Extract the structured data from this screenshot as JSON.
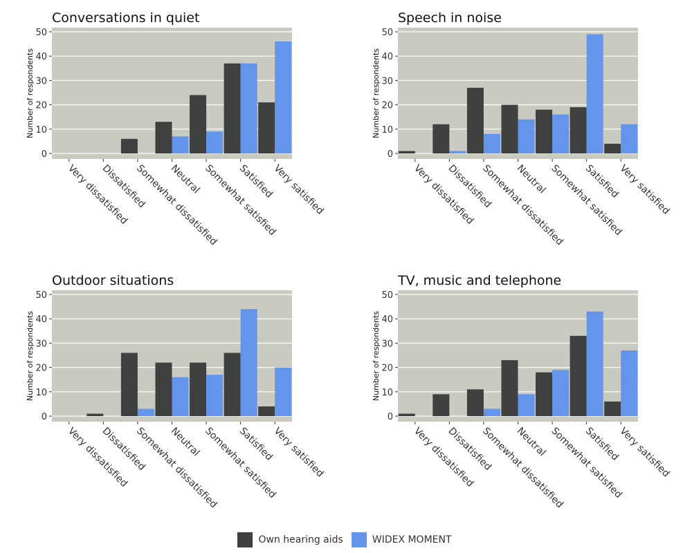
{
  "colors": {
    "own": "#3f4140",
    "widex": "#6495ed",
    "panel_bg": "#c9cbc1",
    "grid": "#ffffff",
    "text": "#333333"
  },
  "chart_data": [
    {
      "type": "bar",
      "title": "Conversations in quiet",
      "ylabel": "Number of respondents",
      "ylim": [
        0,
        50
      ],
      "yticks": [
        0,
        10,
        20,
        30,
        40,
        50
      ],
      "grid": true,
      "categories": [
        "Very dissatisfied",
        "Dissatisfied",
        "Somewhat dissatisfied",
        "Neutral",
        "Somewhat satisfied",
        "Satisfied",
        "Very satisfied"
      ],
      "series": [
        {
          "name": "Own hearing aids",
          "values": [
            0,
            0,
            6,
            13,
            24,
            37,
            21
          ]
        },
        {
          "name": "WIDEX MOMENT",
          "values": [
            0,
            0,
            0,
            7,
            9,
            37,
            46
          ]
        }
      ]
    },
    {
      "type": "bar",
      "title": "Speech in noise",
      "ylabel": "Number of respondents",
      "ylim": [
        0,
        50
      ],
      "yticks": [
        0,
        10,
        20,
        30,
        40,
        50
      ],
      "grid": true,
      "categories": [
        "Very dissatisfied",
        "Dissatisfied",
        "Somewhat dissatisfied",
        "Neutral",
        "Somewhat satisfied",
        "Satisfied",
        "Very satisfied"
      ],
      "series": [
        {
          "name": "Own hearing aids",
          "values": [
            1,
            12,
            27,
            20,
            18,
            19,
            4
          ]
        },
        {
          "name": "WIDEX MOMENT",
          "values": [
            0,
            1,
            8,
            14,
            16,
            49,
            12
          ]
        }
      ]
    },
    {
      "type": "bar",
      "title": "Outdoor situations",
      "ylabel": "Number of respondents",
      "ylim": [
        0,
        50
      ],
      "yticks": [
        0,
        10,
        20,
        30,
        40,
        50
      ],
      "grid": true,
      "categories": [
        "Very dissatisfied",
        "Dissatisfied",
        "Somewhat dissatisfied",
        "Neutral",
        "Somewhat satisfied",
        "Satisfied",
        "Very satisfied"
      ],
      "series": [
        {
          "name": "Own hearing aids",
          "values": [
            0,
            1,
            26,
            22,
            22,
            26,
            4
          ]
        },
        {
          "name": "WIDEX MOMENT",
          "values": [
            0,
            0,
            3,
            16,
            17,
            44,
            20
          ]
        }
      ]
    },
    {
      "type": "bar",
      "title": "TV, music and telephone",
      "ylabel": "Number of respondents",
      "ylim": [
        0,
        50
      ],
      "yticks": [
        0,
        10,
        20,
        30,
        40,
        50
      ],
      "grid": true,
      "categories": [
        "Very dissatisfied",
        "Dissatisfied",
        "Somewhat dissatisfied",
        "Neutral",
        "Somewhat satisfied",
        "Satisfied",
        "Very satisfied"
      ],
      "series": [
        {
          "name": "Own hearing aids",
          "values": [
            1,
            9,
            11,
            23,
            18,
            33,
            6
          ]
        },
        {
          "name": "WIDEX MOMENT",
          "values": [
            0,
            0,
            3,
            9,
            19,
            43,
            27
          ]
        }
      ]
    }
  ],
  "legend": {
    "position": "bottom",
    "items": [
      {
        "label": "Own hearing aids",
        "color": "#3f4140"
      },
      {
        "label": "WIDEX MOMENT",
        "color": "#6495ed"
      }
    ]
  }
}
